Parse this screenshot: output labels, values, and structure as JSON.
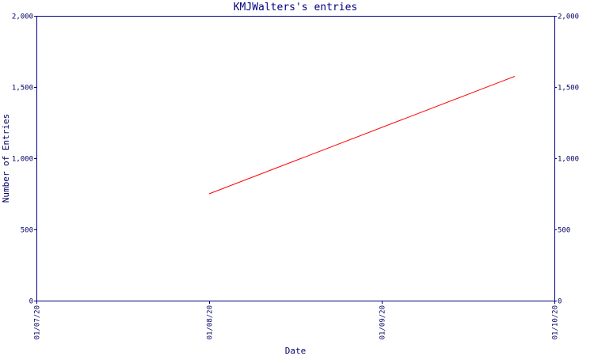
{
  "chart_data": {
    "type": "line",
    "title": "KMJWalters's entries",
    "xlabel": "Date",
    "ylabel": "Number of Entries",
    "x_ticks": [
      "01/07/20",
      "01/08/20",
      "01/09/20",
      "01/10/20"
    ],
    "y_ticks": [
      "0",
      "500",
      "1,000",
      "1,500",
      "2,000"
    ],
    "ylim": [
      0,
      2000
    ],
    "xlim": [
      "01/07/20",
      "01/10/20"
    ],
    "series": [
      {
        "color": "#ff0000",
        "points": [
          {
            "x": "01/08/20",
            "y": 750
          },
          {
            "x": "01/10/20",
            "y": 1575,
            "x_offset_months": 2.77
          }
        ]
      }
    ],
    "axis_color": "#000080",
    "grid": false
  }
}
